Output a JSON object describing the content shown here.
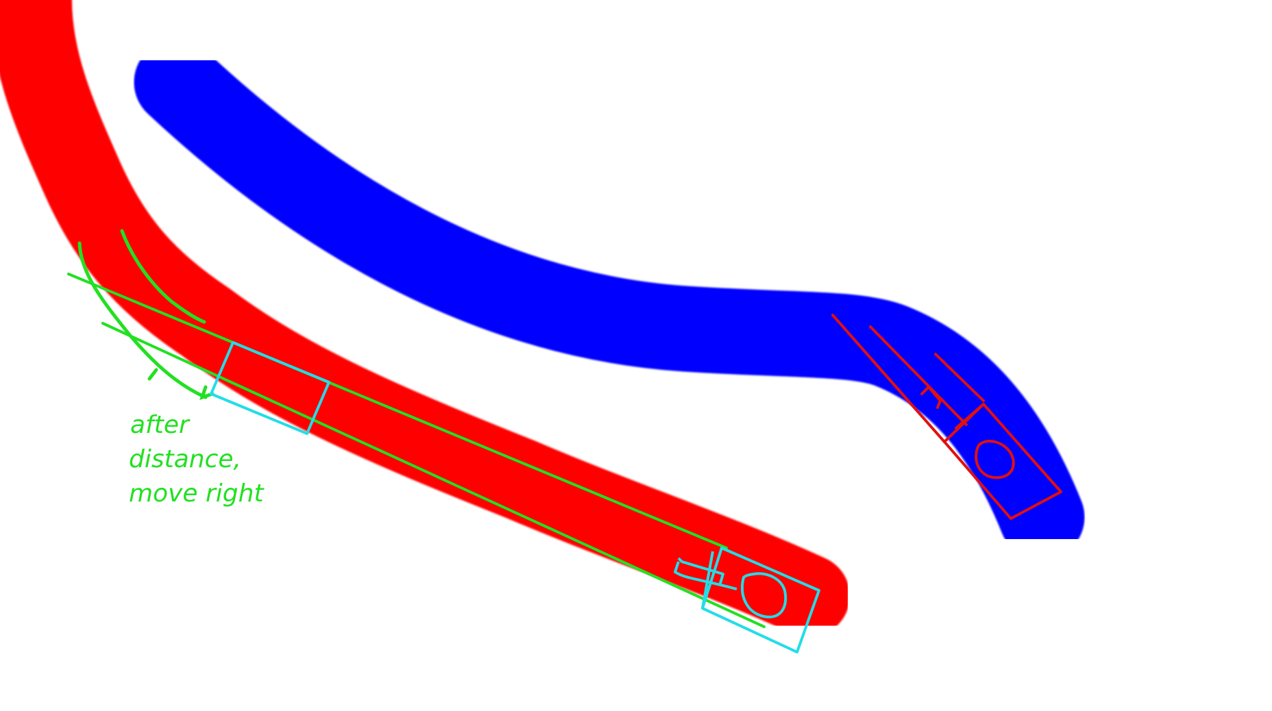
{
  "canvas": {
    "background": "#ffffff"
  },
  "strokes": {
    "red_track_color": "#ff0000",
    "blue_track_color": "#0000ff",
    "green_annotation_color": "#22e022",
    "cyan_annotation_color": "#22dde8",
    "red_annotation_color": "#e01010"
  },
  "annotation": {
    "line1": "after",
    "line2": "distance,",
    "line3": "move right"
  }
}
